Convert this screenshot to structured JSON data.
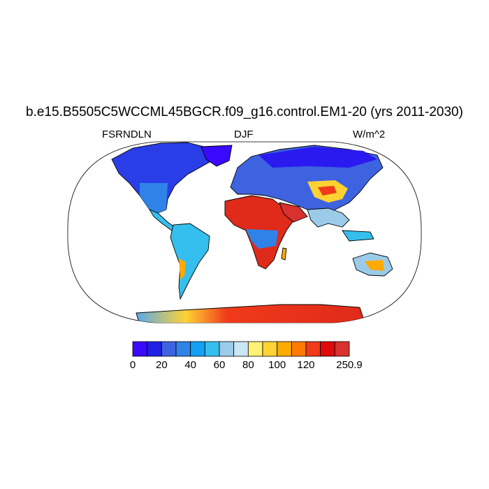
{
  "title": "b.e15.B5505C5WCCML45BGCR.f09_g16.control.EM1-20 (yrs 2011-2030)",
  "left_string": "FSRNDLN",
  "center_string": "DJF",
  "right_string": "W/m^2",
  "colorbar": {
    "colors": [
      "#3a0aff",
      "#1f1fe6",
      "#3e63e0",
      "#2f83e8",
      "#14a0f5",
      "#35bfee",
      "#9ccbea",
      "#c9e6f5",
      "#fff176",
      "#ffd233",
      "#ffaa00",
      "#ff7a00",
      "#f03a1a",
      "#e00a0a",
      "#d8312e"
    ],
    "labels": [
      "0",
      "20",
      "40",
      "60",
      "80",
      "100",
      "120",
      "250.9"
    ]
  },
  "map_colors": {
    "ocean": "#ffffff",
    "coast": "#000000"
  }
}
